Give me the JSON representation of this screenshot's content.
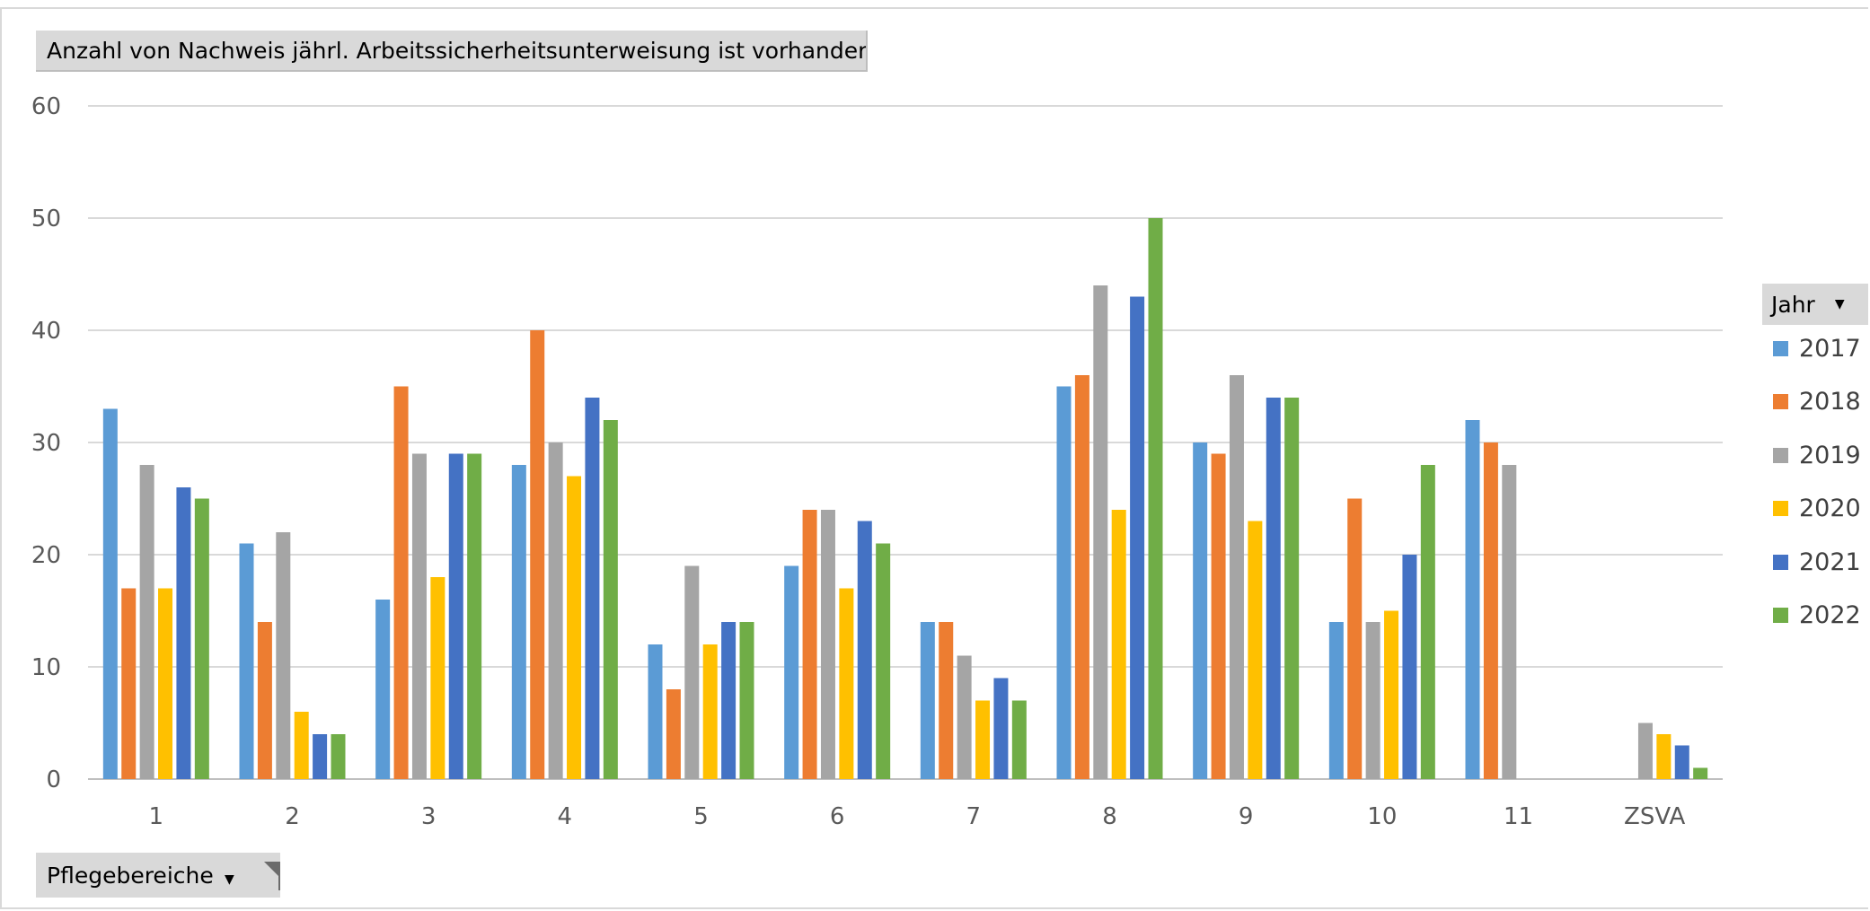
{
  "title_button": {
    "label": "Anzahl von Nachweis jährl. Arbeitssicherheitsunterweisung ist vorhanden"
  },
  "filter_button": {
    "label": "Pflegebereiche"
  },
  "legend_button": {
    "label": "Jahr"
  },
  "colors": {
    "2017": "#5B9BD5",
    "2018": "#ED7D31",
    "2019": "#A5A5A5",
    "2020": "#FFC000",
    "2021": "#4472C4",
    "2022": "#70AD47"
  },
  "chart_data": {
    "type": "bar",
    "title": "",
    "xlabel": "",
    "ylabel": "",
    "ylim": [
      0,
      60
    ],
    "yticks": [
      0,
      10,
      20,
      30,
      40,
      50,
      60
    ],
    "grid": true,
    "legend_position": "right",
    "categories": [
      "1",
      "2",
      "3",
      "4",
      "5",
      "6",
      "7",
      "8",
      "9",
      "10",
      "11",
      "ZSVA"
    ],
    "series": [
      {
        "name": "2017",
        "values": [
          33,
          21,
          16,
          28,
          12,
          19,
          14,
          35,
          30,
          14,
          32,
          null
        ]
      },
      {
        "name": "2018",
        "values": [
          17,
          14,
          35,
          40,
          8,
          24,
          14,
          36,
          29,
          25,
          30,
          null
        ]
      },
      {
        "name": "2019",
        "values": [
          28,
          22,
          29,
          30,
          19,
          24,
          11,
          44,
          36,
          14,
          28,
          5
        ]
      },
      {
        "name": "2020",
        "values": [
          17,
          6,
          18,
          27,
          12,
          17,
          7,
          24,
          23,
          15,
          null,
          4
        ]
      },
      {
        "name": "2021",
        "values": [
          26,
          4,
          29,
          34,
          14,
          23,
          9,
          43,
          34,
          20,
          null,
          3
        ]
      },
      {
        "name": "2022",
        "values": [
          25,
          4,
          29,
          32,
          14,
          21,
          7,
          50,
          34,
          28,
          null,
          1
        ]
      }
    ]
  }
}
